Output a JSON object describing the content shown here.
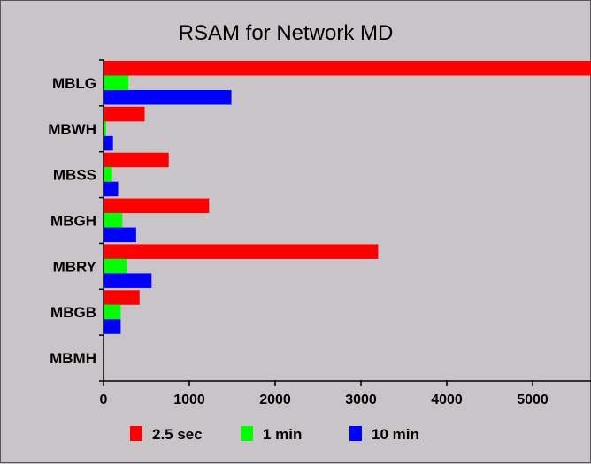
{
  "chart_data": {
    "type": "bar",
    "orientation": "horizontal",
    "title": "RSAM for Network MD",
    "xlabel": "",
    "ylabel": "",
    "categories": [
      "MBLG",
      "MBWH",
      "MBSS",
      "MBGH",
      "MBRY",
      "MBGB",
      "MBMH"
    ],
    "series": [
      {
        "name": "2.5 sec",
        "color": "#ff0000",
        "values": [
          5800,
          480,
          760,
          1230,
          3200,
          420,
          0
        ]
      },
      {
        "name": "1 min",
        "color": "#00ff00",
        "values": [
          290,
          30,
          100,
          220,
          270,
          200,
          0
        ]
      },
      {
        "name": "10 min",
        "color": "#0000ff",
        "values": [
          1490,
          110,
          170,
          380,
          560,
          200,
          0
        ]
      }
    ],
    "xlim": [
      0,
      5700
    ],
    "xticks": [
      "0",
      "1000",
      "2000",
      "3000",
      "4000",
      "5000"
    ],
    "grid": false,
    "legend_position": "bottom"
  }
}
